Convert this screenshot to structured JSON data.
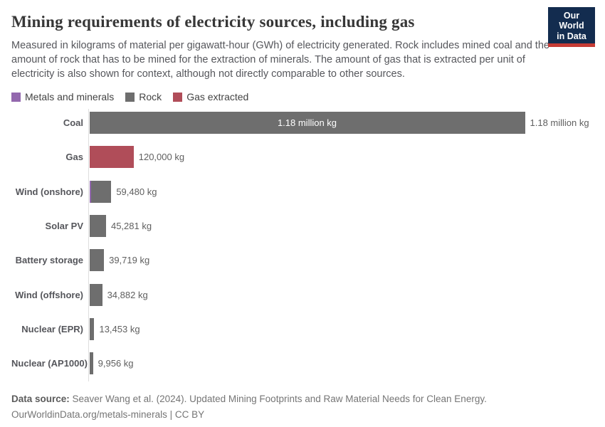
{
  "header": {
    "title": "Mining requirements of electricity sources, including gas",
    "subtitle": "Measured in kilograms of material per gigawatt-hour (GWh) of electricity generated. Rock includes mined coal and the amount of rock that has to be mined for the extraction of minerals. The amount of gas that is extracted per unit of electricity is also shown for context, although not directly comparable to other sources.",
    "logo": {
      "line1": "Our World",
      "line2": "in Data"
    }
  },
  "legend": {
    "items": [
      {
        "label": "Metals and minerals",
        "color": "#9368ae"
      },
      {
        "label": "Rock",
        "color": "#6e6e6e"
      },
      {
        "label": "Gas extracted",
        "color": "#b04d59"
      }
    ]
  },
  "chart_data": {
    "type": "bar",
    "orientation": "horizontal",
    "unit": "kg of material per GWh",
    "xlim": [
      0,
      1180000
    ],
    "grid": false,
    "legend_position": "top",
    "categories": [
      "Coal",
      "Gas",
      "Wind (onshore)",
      "Solar PV",
      "Battery storage",
      "Wind (offshore)",
      "Nuclear (EPR)",
      "Nuclear (AP1000)"
    ],
    "series": [
      {
        "name": "Metals and minerals",
        "color": "#9368ae",
        "values": [
          0,
          0,
          4000,
          1900,
          1900,
          1900,
          1000,
          800
        ]
      },
      {
        "name": "Rock",
        "color": "#6e6e6e",
        "values": [
          1180000,
          0,
          55480,
          43381,
          37819,
          32982,
          12453,
          9156
        ]
      },
      {
        "name": "Gas extracted",
        "color": "#b04d59",
        "values": [
          0,
          120000,
          0,
          0,
          0,
          0,
          0,
          0
        ]
      }
    ],
    "totals": [
      1180000,
      120000,
      59480,
      45281,
      39719,
      34882,
      13453,
      9956
    ],
    "value_labels": [
      "1.18 million kg",
      "120,000 kg",
      "59,480 kg",
      "45,281 kg",
      "39,719 kg",
      "34,882 kg",
      "13,453 kg",
      "9,956 kg"
    ],
    "inside_labels": [
      "1.18 million kg",
      "",
      "",
      "",
      "",
      "",
      "",
      ""
    ]
  },
  "footer": {
    "datasource_label": "Data source:",
    "datasource_text": " Seaver Wang et al. (2024). Updated Mining Footprints and Raw Material Needs for Clean Energy.",
    "license_line": "OurWorldinData.org/metals-minerals | CC BY"
  },
  "colors": {
    "bar_gray": "#6e6e6e",
    "bar_red": "#b04d59",
    "bar_purple": "#9368ae",
    "axis": "#dedede",
    "logo_navy": "#132c4f",
    "logo_red": "#c63c35"
  }
}
